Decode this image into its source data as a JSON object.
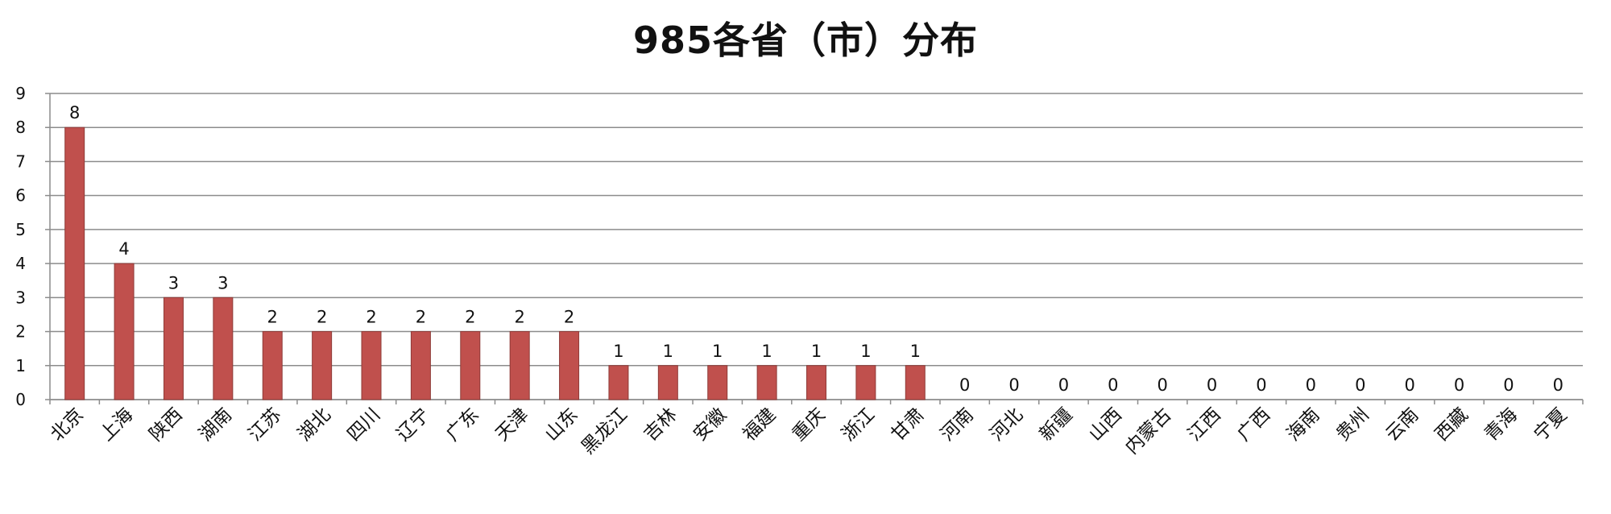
{
  "chart_data": {
    "type": "bar",
    "title": "985各省（市）分布",
    "xlabel": "",
    "ylabel": "",
    "ylim": [
      0,
      9
    ],
    "yticks": [
      0,
      1,
      2,
      3,
      4,
      5,
      6,
      7,
      8,
      9
    ],
    "grid": true,
    "legend": "none",
    "bar_color": "#c0504d",
    "categories": [
      "北京",
      "上海",
      "陕西",
      "湖南",
      "江苏",
      "湖北",
      "四川",
      "辽宁",
      "广东",
      "天津",
      "山东",
      "黑龙江",
      "吉林",
      "安徽",
      "福建",
      "重庆",
      "浙江",
      "甘肃",
      "河南",
      "河北",
      "新疆",
      "山西",
      "内蒙古",
      "江西",
      "广西",
      "海南",
      "贵州",
      "云南",
      "西藏",
      "青海",
      "宁夏"
    ],
    "values": [
      8,
      4,
      3,
      3,
      2,
      2,
      2,
      2,
      2,
      2,
      2,
      1,
      1,
      1,
      1,
      1,
      1,
      1,
      0,
      0,
      0,
      0,
      0,
      0,
      0,
      0,
      0,
      0,
      0,
      0,
      0
    ]
  }
}
